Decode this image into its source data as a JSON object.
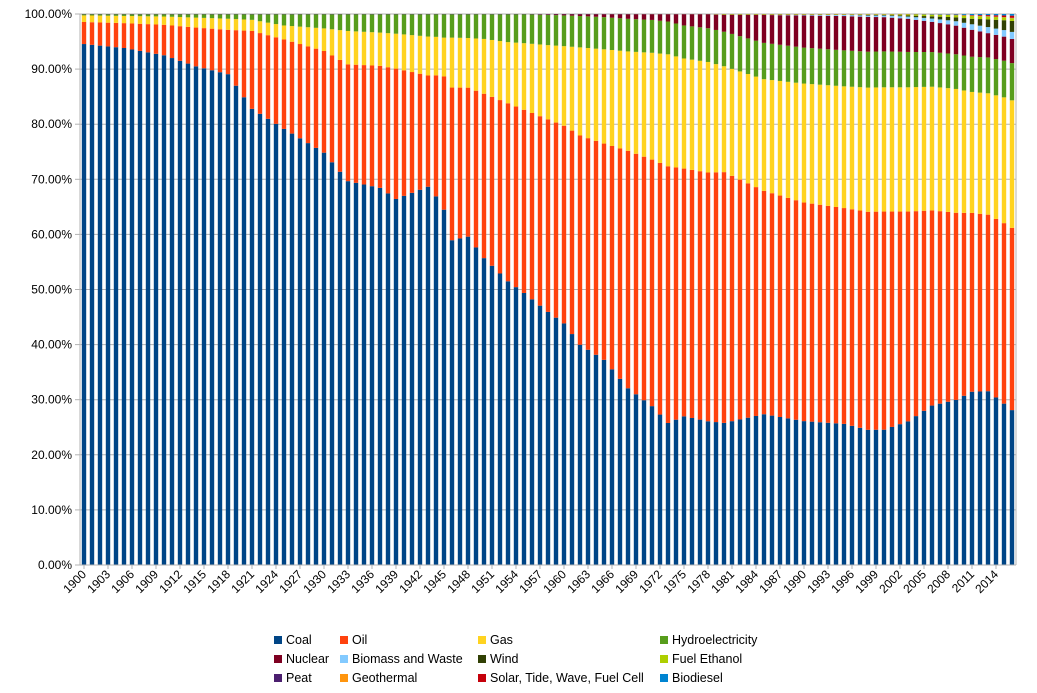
{
  "chart_data": {
    "type": "bar",
    "stacked": true,
    "percent": true,
    "title": "",
    "xlabel": "",
    "ylabel": "",
    "ylim": [
      0,
      100
    ],
    "yticks": [
      "0.00%",
      "10.00%",
      "20.00%",
      "30.00%",
      "40.00%",
      "50.00%",
      "60.00%",
      "70.00%",
      "80.00%",
      "90.00%",
      "100.00%"
    ],
    "x_start": 1900,
    "x_end": 2016,
    "x_labels": [
      "1900",
      "1903",
      "1906",
      "1909",
      "1912",
      "1915",
      "1918",
      "1921",
      "1924",
      "1927",
      "1930",
      "1933",
      "1936",
      "1939",
      "1942",
      "1945",
      "1948",
      "1951",
      "1954",
      "1957",
      "1960",
      "1963",
      "1966",
      "1969",
      "1972",
      "1975",
      "1978",
      "1981",
      "1984",
      "1987",
      "1990",
      "1993",
      "1996",
      "1999",
      "2002",
      "2005",
      "2008",
      "2011",
      "2014"
    ],
    "grid": true,
    "legend_position": "bottom",
    "series": [
      {
        "name": "Coal",
        "color": "#004586",
        "knots": [
          [
            1900,
            94.5
          ],
          [
            1905,
            93.5
          ],
          [
            1910,
            92
          ],
          [
            1914,
            90
          ],
          [
            1918,
            88.5
          ],
          [
            1921,
            82
          ],
          [
            1925,
            78
          ],
          [
            1930,
            73
          ],
          [
            1933,
            69
          ],
          [
            1937,
            68
          ],
          [
            1939,
            66
          ],
          [
            1943,
            68
          ],
          [
            1944,
            67
          ],
          [
            1945,
            64
          ],
          [
            1946,
            58.5
          ],
          [
            1948,
            59.5
          ],
          [
            1950,
            56
          ],
          [
            1953,
            51
          ],
          [
            1955,
            49
          ],
          [
            1958,
            46
          ],
          [
            1960,
            44
          ],
          [
            1962,
            40
          ],
          [
            1965,
            37
          ],
          [
            1968,
            32
          ],
          [
            1971,
            29
          ],
          [
            1973,
            26
          ],
          [
            1975,
            27
          ],
          [
            1978,
            26
          ],
          [
            1980,
            25.5
          ],
          [
            1985,
            27
          ],
          [
            1990,
            26
          ],
          [
            1995,
            25.5
          ],
          [
            1998,
            24.5
          ],
          [
            2000,
            24.5
          ],
          [
            2003,
            26
          ],
          [
            2006,
            29
          ],
          [
            2009,
            30
          ],
          [
            2011,
            31.5
          ],
          [
            2013,
            31.5
          ],
          [
            2015,
            29.5
          ],
          [
            2016,
            28.3
          ]
        ]
      },
      {
        "name": "Oil",
        "color": "#ff420e",
        "knots": [
          [
            1900,
            4
          ],
          [
            1905,
            4.5
          ],
          [
            1910,
            5.5
          ],
          [
            1914,
            7
          ],
          [
            1918,
            8
          ],
          [
            1921,
            14
          ],
          [
            1925,
            16
          ],
          [
            1930,
            18
          ],
          [
            1933,
            21
          ],
          [
            1937,
            22
          ],
          [
            1939,
            23.5
          ],
          [
            1943,
            20
          ],
          [
            1945,
            24
          ],
          [
            1946,
            27.5
          ],
          [
            1948,
            27
          ],
          [
            1950,
            30
          ],
          [
            1953,
            32
          ],
          [
            1955,
            33
          ],
          [
            1958,
            35
          ],
          [
            1960,
            36
          ],
          [
            1962,
            38
          ],
          [
            1965,
            39
          ],
          [
            1968,
            43
          ],
          [
            1971,
            45
          ],
          [
            1973,
            47
          ],
          [
            1975,
            45
          ],
          [
            1978,
            45
          ],
          [
            1980,
            45
          ],
          [
            1985,
            40
          ],
          [
            1990,
            39.5
          ],
          [
            1995,
            39
          ],
          [
            1998,
            39.5
          ],
          [
            2000,
            39.5
          ],
          [
            2003,
            38
          ],
          [
            2006,
            35.5
          ],
          [
            2009,
            34
          ],
          [
            2011,
            32.5
          ],
          [
            2013,
            32
          ],
          [
            2015,
            33
          ],
          [
            2016,
            33.3
          ]
        ]
      },
      {
        "name": "Gas",
        "color": "#ffd320",
        "knots": [
          [
            1900,
            1.2
          ],
          [
            1905,
            1.3
          ],
          [
            1910,
            1.5
          ],
          [
            1914,
            1.8
          ],
          [
            1918,
            2
          ],
          [
            1921,
            2
          ],
          [
            1925,
            2.5
          ],
          [
            1930,
            4
          ],
          [
            1933,
            6
          ],
          [
            1937,
            6
          ],
          [
            1939,
            6.3
          ],
          [
            1943,
            7
          ],
          [
            1945,
            7
          ],
          [
            1946,
            9
          ],
          [
            1948,
            9
          ],
          [
            1950,
            10
          ],
          [
            1953,
            11
          ],
          [
            1955,
            12
          ],
          [
            1958,
            13.5
          ],
          [
            1960,
            14.5
          ],
          [
            1962,
            16
          ],
          [
            1965,
            17
          ],
          [
            1968,
            18
          ],
          [
            1971,
            19.5
          ],
          [
            1973,
            20.5
          ],
          [
            1975,
            20
          ],
          [
            1978,
            20
          ],
          [
            1980,
            19
          ],
          [
            1985,
            20
          ],
          [
            1990,
            21.5
          ],
          [
            1995,
            22
          ],
          [
            1998,
            22.5
          ],
          [
            2000,
            22.5
          ],
          [
            2003,
            22.5
          ],
          [
            2006,
            22.5
          ],
          [
            2009,
            22.5
          ],
          [
            2011,
            22
          ],
          [
            2013,
            22
          ],
          [
            2015,
            23
          ],
          [
            2016,
            23.3
          ]
        ]
      },
      {
        "name": "Hydroelectricity",
        "color": "#579d1c",
        "knots": [
          [
            1900,
            0.2
          ],
          [
            1905,
            0.3
          ],
          [
            1910,
            0.4
          ],
          [
            1914,
            0.6
          ],
          [
            1918,
            0.8
          ],
          [
            1921,
            1
          ],
          [
            1925,
            2
          ],
          [
            1930,
            2.5
          ],
          [
            1933,
            3
          ],
          [
            1937,
            3.3
          ],
          [
            1939,
            3.5
          ],
          [
            1943,
            4
          ],
          [
            1945,
            4.2
          ],
          [
            1946,
            4.2
          ],
          [
            1948,
            4.3
          ],
          [
            1950,
            4.5
          ],
          [
            1953,
            5
          ],
          [
            1955,
            5.2
          ],
          [
            1958,
            5.5
          ],
          [
            1960,
            5.6
          ],
          [
            1962,
            5.7
          ],
          [
            1965,
            5.8
          ],
          [
            1968,
            5.9
          ],
          [
            1971,
            6
          ],
          [
            1973,
            6
          ],
          [
            1975,
            6
          ],
          [
            1978,
            6.1
          ],
          [
            1980,
            6.2
          ],
          [
            1985,
            6.5
          ],
          [
            1990,
            6.5
          ],
          [
            1995,
            6.5
          ],
          [
            1998,
            6.5
          ],
          [
            2000,
            6.5
          ],
          [
            2003,
            6.4
          ],
          [
            2006,
            6.3
          ],
          [
            2009,
            6.3
          ],
          [
            2011,
            6.4
          ],
          [
            2013,
            6.5
          ],
          [
            2015,
            6.7
          ],
          [
            2016,
            6.8
          ]
        ]
      },
      {
        "name": "Nuclear",
        "color": "#7e0021",
        "knots": [
          [
            1900,
            0
          ],
          [
            1955,
            0
          ],
          [
            1958,
            0.1
          ],
          [
            1962,
            0.3
          ],
          [
            1965,
            0.5
          ],
          [
            1968,
            0.8
          ],
          [
            1971,
            1
          ],
          [
            1973,
            1.3
          ],
          [
            1975,
            2
          ],
          [
            1978,
            2.5
          ],
          [
            1980,
            3
          ],
          [
            1985,
            5
          ],
          [
            1990,
            5.8
          ],
          [
            1995,
            6.2
          ],
          [
            1998,
            6.3
          ],
          [
            2000,
            6.2
          ],
          [
            2003,
            6
          ],
          [
            2006,
            5.5
          ],
          [
            2009,
            5.2
          ],
          [
            2011,
            4.9
          ],
          [
            2013,
            4.4
          ],
          [
            2015,
            4.4
          ],
          [
            2016,
            4.4
          ]
        ]
      },
      {
        "name": "Biomass and Waste",
        "color": "#83caff",
        "knots": [
          [
            1900,
            0
          ],
          [
            1985,
            0
          ],
          [
            1990,
            0.1
          ],
          [
            1995,
            0.2
          ],
          [
            2000,
            0.3
          ],
          [
            2003,
            0.4
          ],
          [
            2006,
            0.6
          ],
          [
            2009,
            0.8
          ],
          [
            2011,
            1
          ],
          [
            2013,
            1.1
          ],
          [
            2015,
            1.2
          ],
          [
            2016,
            1.3
          ]
        ]
      },
      {
        "name": "Wind",
        "color": "#314004",
        "knots": [
          [
            1900,
            0
          ],
          [
            1995,
            0
          ],
          [
            1998,
            0.1
          ],
          [
            2000,
            0.1
          ],
          [
            2003,
            0.2
          ],
          [
            2006,
            0.4
          ],
          [
            2009,
            0.7
          ],
          [
            2011,
            1
          ],
          [
            2013,
            1.4
          ],
          [
            2015,
            1.8
          ],
          [
            2016,
            2
          ]
        ]
      },
      {
        "name": "Fuel Ethanol",
        "color": "#aecf00",
        "knots": [
          [
            1900,
            0
          ],
          [
            1978,
            0
          ],
          [
            1980,
            0.1
          ],
          [
            1990,
            0.1
          ],
          [
            2000,
            0.1
          ],
          [
            2003,
            0.2
          ],
          [
            2006,
            0.3
          ],
          [
            2009,
            0.4
          ],
          [
            2011,
            0.5
          ],
          [
            2013,
            0.5
          ],
          [
            2015,
            0.5
          ],
          [
            2016,
            0.5
          ]
        ]
      },
      {
        "name": "Peat",
        "color": "#4b1f6f",
        "knots": [
          [
            1900,
            0.05
          ],
          [
            1950,
            0.05
          ],
          [
            1970,
            0.06
          ],
          [
            1990,
            0.04
          ],
          [
            2016,
            0.02
          ]
        ]
      },
      {
        "name": "Geothermal",
        "color": "#ff950e",
        "knots": [
          [
            1900,
            0
          ],
          [
            1960,
            0
          ],
          [
            1970,
            0.02
          ],
          [
            1990,
            0.03
          ],
          [
            2016,
            0.05
          ]
        ]
      },
      {
        "name": "Solar, Tide, Wave, Fuel Cell",
        "color": "#c5000b",
        "knots": [
          [
            1900,
            0
          ],
          [
            2005,
            0
          ],
          [
            2008,
            0.02
          ],
          [
            2011,
            0.1
          ],
          [
            2013,
            0.2
          ],
          [
            2015,
            0.3
          ],
          [
            2016,
            0.4
          ]
        ]
      },
      {
        "name": "Biodiesel",
        "color": "#0084d1",
        "knots": [
          [
            1900,
            0
          ],
          [
            2003,
            0
          ],
          [
            2006,
            0.05
          ],
          [
            2009,
            0.1
          ],
          [
            2011,
            0.2
          ],
          [
            2013,
            0.2
          ],
          [
            2016,
            0.3
          ]
        ]
      }
    ]
  }
}
